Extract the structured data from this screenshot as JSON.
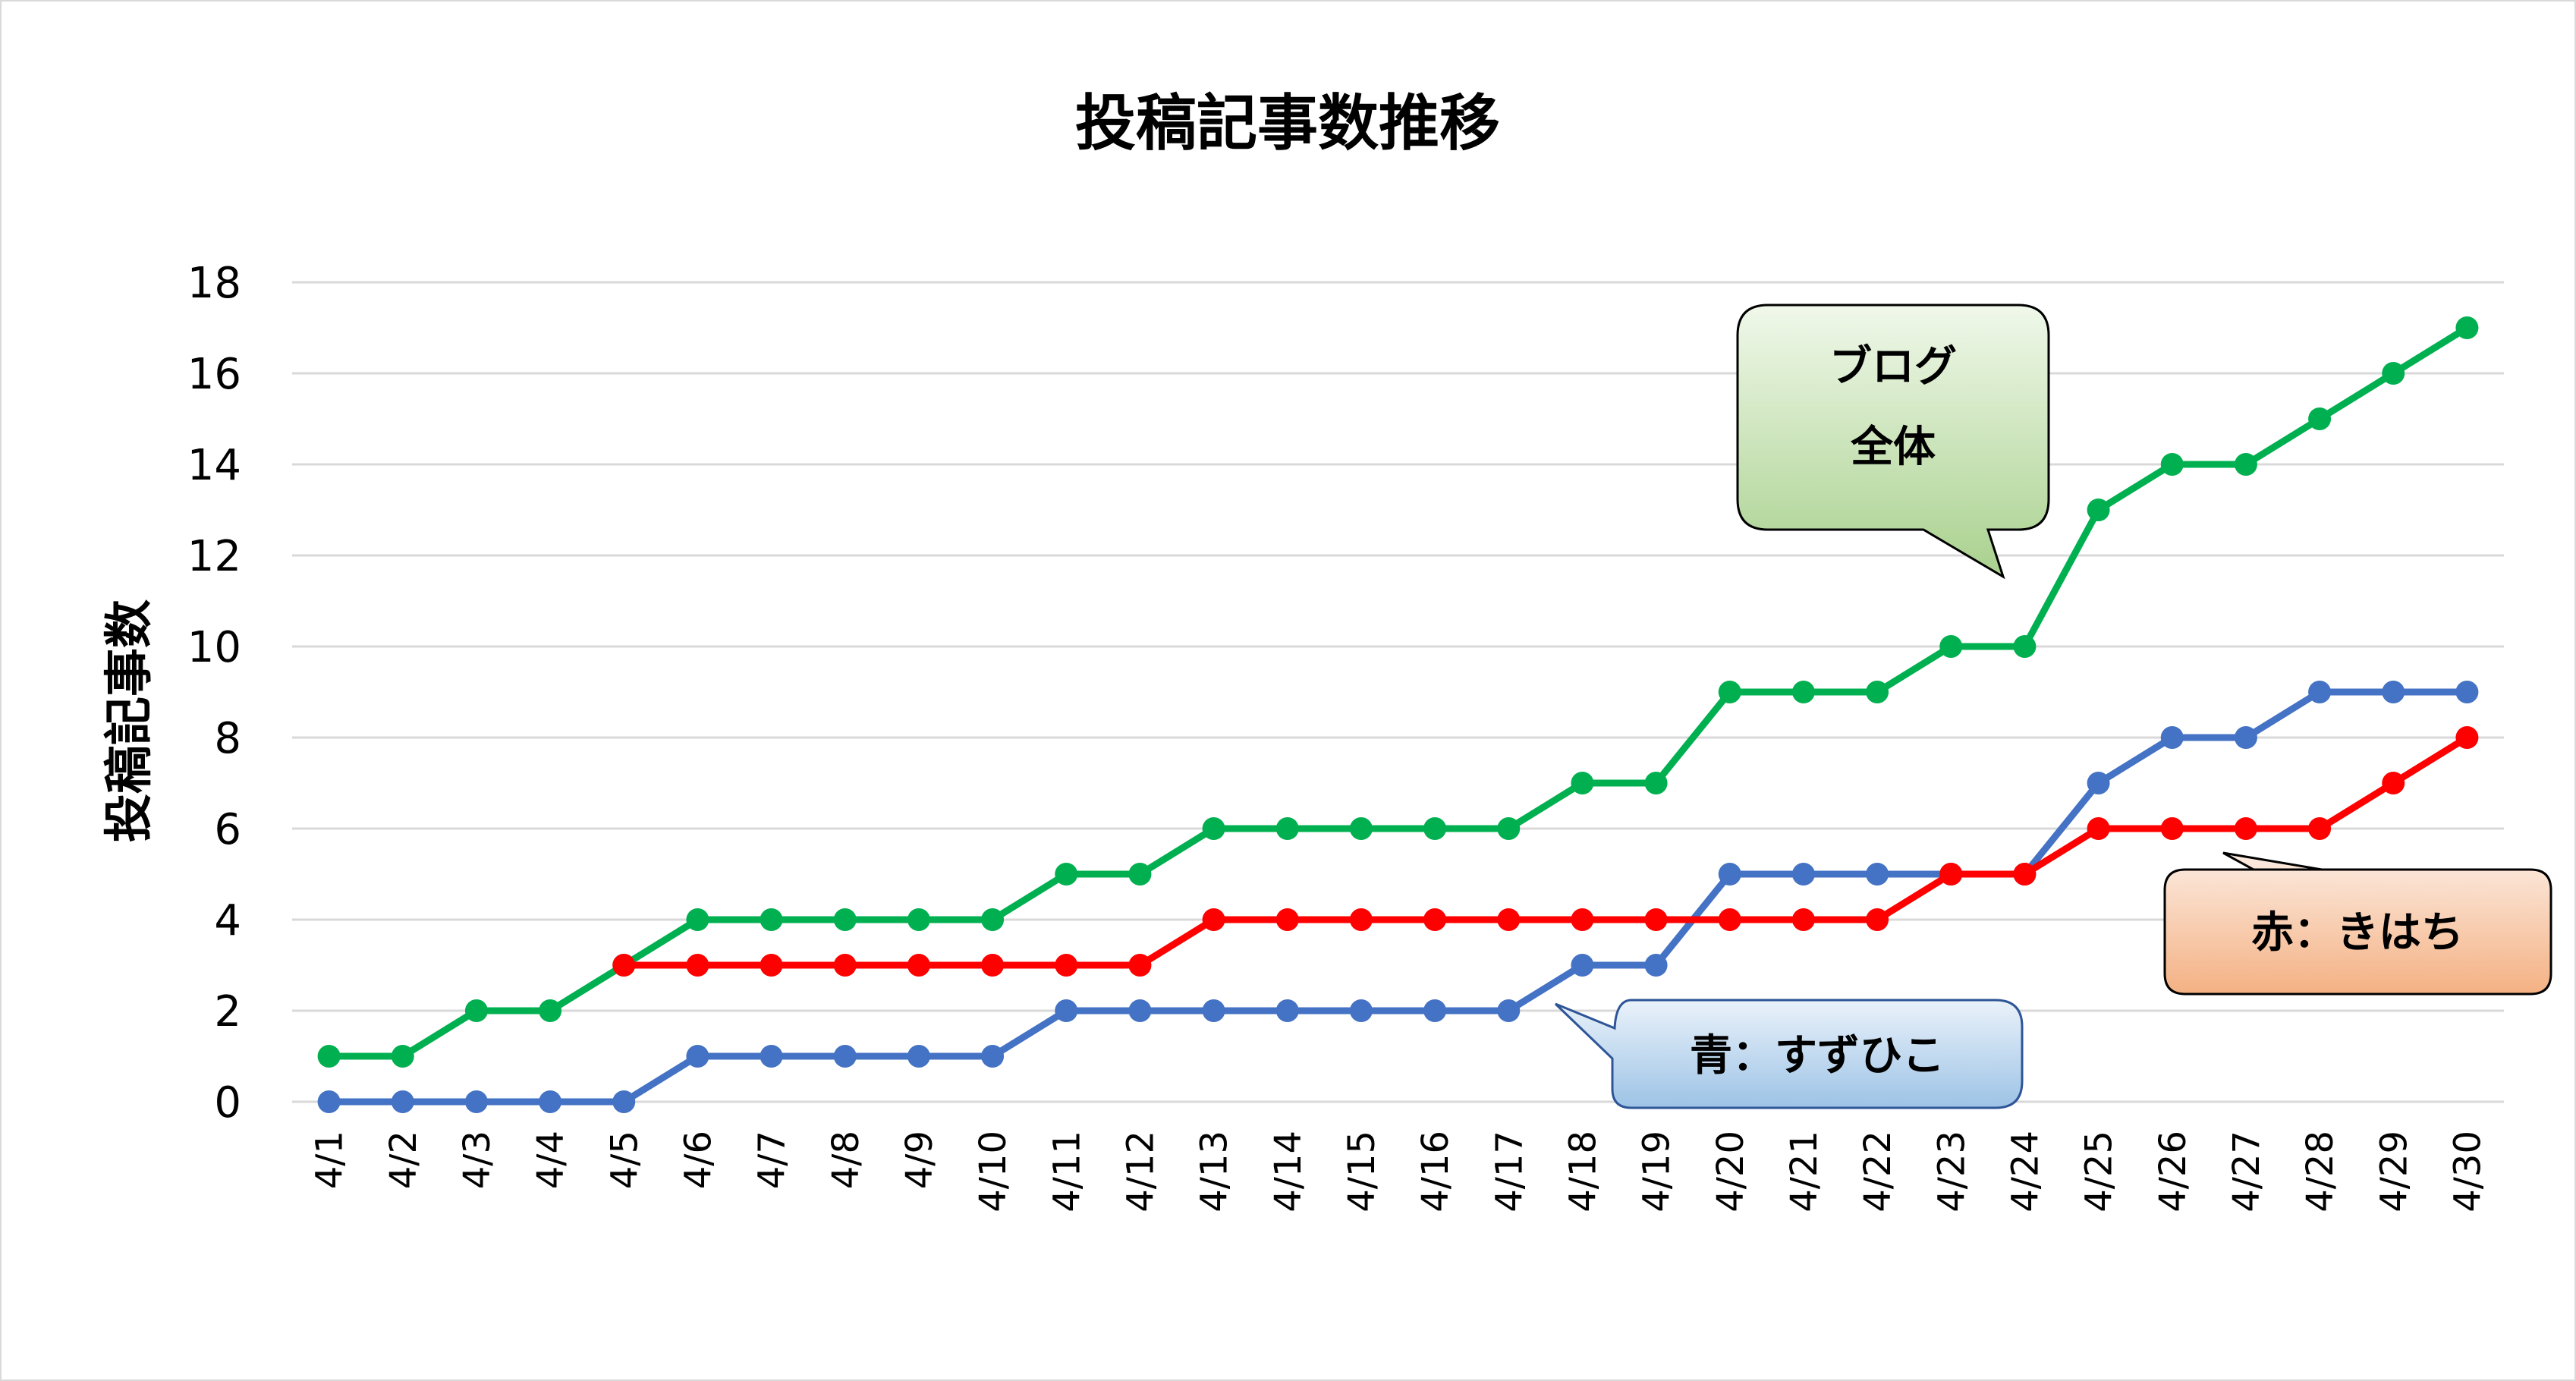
{
  "chart_data": {
    "type": "line",
    "title": "投稿記事数推移",
    "ylabel": "投稿記事数",
    "xlabel": "",
    "ylim": [
      0,
      18
    ],
    "yticks": [
      "0",
      "2",
      "4",
      "6",
      "8",
      "10",
      "12",
      "14",
      "16",
      "18"
    ],
    "categories": [
      "4/1",
      "4/2",
      "4/3",
      "4/4",
      "4/5",
      "4/6",
      "4/7",
      "4/8",
      "4/9",
      "4/10",
      "4/11",
      "4/12",
      "4/13",
      "4/14",
      "4/15",
      "4/16",
      "4/17",
      "4/18",
      "4/19",
      "4/20",
      "4/21",
      "4/22",
      "4/23",
      "4/24",
      "4/25",
      "4/26",
      "4/27",
      "4/28",
      "4/29",
      "4/30"
    ],
    "grid": true,
    "series": [
      {
        "key": "total",
        "color": "#00b050",
        "values": [
          1,
          1,
          2,
          2,
          3,
          4,
          4,
          4,
          4,
          4,
          5,
          5,
          6,
          6,
          6,
          6,
          6,
          7,
          7,
          9,
          9,
          9,
          10,
          10,
          13,
          14,
          14,
          15,
          16,
          17
        ]
      },
      {
        "key": "suzuhiko",
        "color": "#4472c4",
        "values": [
          0,
          0,
          0,
          0,
          0,
          1,
          1,
          1,
          1,
          1,
          2,
          2,
          2,
          2,
          2,
          2,
          2,
          3,
          3,
          5,
          5,
          5,
          5,
          5,
          7,
          8,
          8,
          9,
          9,
          9
        ]
      },
      {
        "key": "kihachi",
        "color": "#ff0000",
        "values": [
          null,
          null,
          null,
          null,
          3,
          3,
          3,
          3,
          3,
          3,
          3,
          3,
          4,
          4,
          4,
          4,
          4,
          4,
          4,
          4,
          4,
          4,
          5,
          5,
          6,
          6,
          6,
          6,
          7,
          8
        ]
      }
    ],
    "annotations": [
      {
        "key": "total",
        "lines": [
          "ブログ",
          "全体"
        ]
      },
      {
        "key": "suzuhiko",
        "lines": [
          "青：すずひこ"
        ]
      },
      {
        "key": "kihachi",
        "lines": [
          "赤：きはち"
        ]
      }
    ]
  }
}
